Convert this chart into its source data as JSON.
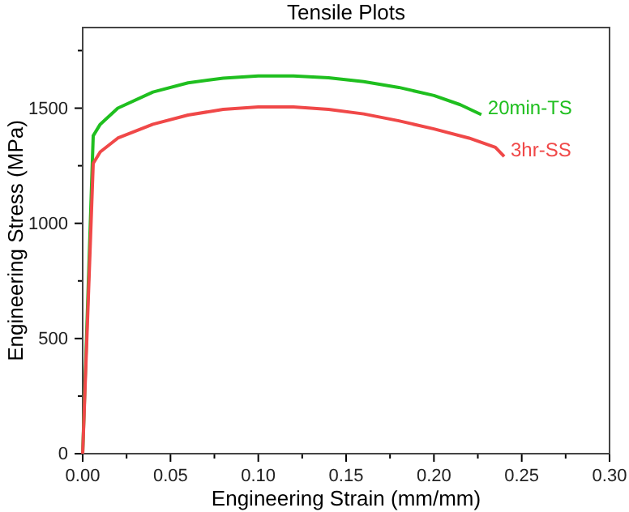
{
  "chart_data": {
    "type": "line",
    "title": "Tensile Plots",
    "xlabel": "Engineering Strain (mm/mm)",
    "ylabel": "Engineering Stress (MPa)",
    "xlim": [
      0,
      0.3
    ],
    "ylim": [
      0,
      1850
    ],
    "xticks": [
      {
        "value": 0,
        "label": "0.00"
      },
      {
        "value": 0.025,
        "label": null
      },
      {
        "value": 0.05,
        "label": "0.05"
      },
      {
        "value": 0.075,
        "label": null
      },
      {
        "value": 0.1,
        "label": "0.10"
      },
      {
        "value": 0.125,
        "label": null
      },
      {
        "value": 0.15,
        "label": "0.15"
      },
      {
        "value": 0.175,
        "label": null
      },
      {
        "value": 0.2,
        "label": "0.20"
      },
      {
        "value": 0.225,
        "label": null
      },
      {
        "value": 0.25,
        "label": "0.25"
      },
      {
        "value": 0.275,
        "label": null
      },
      {
        "value": 0.3,
        "label": "0.30"
      }
    ],
    "yticks": [
      0,
      {
        "value": 250,
        "label": null
      },
      500,
      {
        "value": 750,
        "label": null
      },
      1000,
      {
        "value": 1250,
        "label": null
      },
      1500,
      {
        "value": 1750,
        "label": null
      }
    ],
    "grid": false,
    "legend": false,
    "marker": "none",
    "line_style": "solid",
    "series": [
      {
        "name": "20min-TS",
        "color": "#1fbf1f",
        "x": [
          0,
          0.006,
          0.01,
          0.02,
          0.04,
          0.06,
          0.08,
          0.1,
          0.12,
          0.14,
          0.16,
          0.18,
          0.2,
          0.215,
          0.227
        ],
        "values": [
          0,
          1380,
          1430,
          1500,
          1570,
          1610,
          1630,
          1640,
          1640,
          1632,
          1615,
          1590,
          1555,
          1515,
          1472
        ]
      },
      {
        "name": "3hr-SS",
        "color": "#f04848",
        "x": [
          0,
          0.006,
          0.01,
          0.02,
          0.04,
          0.06,
          0.08,
          0.1,
          0.12,
          0.14,
          0.16,
          0.18,
          0.2,
          0.22,
          0.235,
          0.24
        ],
        "values": [
          0,
          1260,
          1310,
          1370,
          1430,
          1470,
          1495,
          1505,
          1505,
          1495,
          1475,
          1445,
          1410,
          1370,
          1330,
          1290
        ]
      }
    ]
  }
}
